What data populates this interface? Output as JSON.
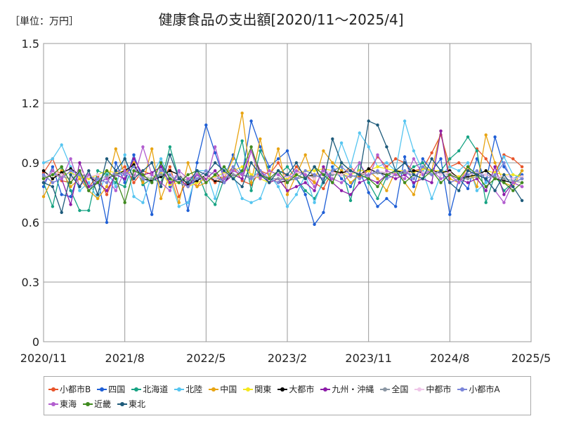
{
  "header": {
    "unit_label": "［単位：万円］",
    "title": "健康食品の支出額[2020/11～2025/4]"
  },
  "chart_data": {
    "type": "line",
    "ylim": [
      0,
      1.5
    ],
    "y_ticks": [
      "0",
      "0.3",
      "0.6",
      "0.9",
      "1.2",
      "1.5"
    ],
    "x_ticks": [
      "2020/11",
      "2021/8",
      "2022/5",
      "2023/2",
      "2023/11",
      "2024/8",
      "2025/5"
    ],
    "x_start": "2020/11",
    "months": [
      "2020/11",
      "2020/12",
      "2021/1",
      "2021/2",
      "2021/3",
      "2021/4",
      "2021/5",
      "2021/6",
      "2021/7",
      "2021/8",
      "2021/9",
      "2021/10",
      "2021/11",
      "2021/12",
      "2022/1",
      "2022/2",
      "2022/3",
      "2022/4",
      "2022/5",
      "2022/6",
      "2022/7",
      "2022/8",
      "2022/9",
      "2022/10",
      "2022/11",
      "2022/12",
      "2023/1",
      "2023/2",
      "2023/3",
      "2023/4",
      "2023/5",
      "2023/6",
      "2023/7",
      "2023/8",
      "2023/9",
      "2023/10",
      "2023/11",
      "2023/12",
      "2024/1",
      "2024/2",
      "2024/3",
      "2024/4",
      "2024/5",
      "2024/6",
      "2024/7",
      "2024/8",
      "2024/9",
      "2024/10",
      "2024/11",
      "2024/12",
      "2025/1",
      "2025/2",
      "2025/3",
      "2025/4"
    ],
    "grid": true,
    "legend_position": "bottom",
    "series": [
      {
        "name": "小都市B",
        "color": "#e8542a",
        "values": [
          0.85,
          0.92,
          0.81,
          0.8,
          0.86,
          0.78,
          0.83,
          0.74,
          0.85,
          0.88,
          0.8,
          0.86,
          0.84,
          0.8,
          0.88,
          0.73,
          0.82,
          0.78,
          0.84,
          0.8,
          0.83,
          0.88,
          0.81,
          0.79,
          0.86,
          0.84,
          0.9,
          0.82,
          0.88,
          0.84,
          0.8,
          0.77,
          0.86,
          0.84,
          0.88,
          0.83,
          0.86,
          0.93,
          0.88,
          0.92,
          0.9,
          0.86,
          0.87,
          0.95,
          1.04,
          0.88,
          0.9,
          0.86,
          0.97,
          0.92,
          0.85,
          0.94,
          0.92,
          0.88
        ]
      },
      {
        "name": "四国",
        "color": "#1f5fd6",
        "values": [
          0.78,
          0.88,
          0.74,
          0.73,
          0.86,
          0.76,
          0.82,
          0.6,
          0.9,
          0.8,
          0.94,
          0.81,
          0.64,
          0.9,
          0.78,
          0.86,
          0.66,
          0.9,
          1.09,
          0.95,
          0.82,
          0.94,
          0.84,
          1.11,
          0.98,
          0.88,
          0.92,
          0.96,
          0.82,
          0.74,
          0.59,
          0.65,
          0.88,
          0.82,
          0.78,
          0.86,
          0.75,
          0.68,
          0.72,
          0.68,
          0.93,
          0.78,
          0.92,
          0.86,
          0.92,
          0.64,
          0.82,
          0.77,
          0.92,
          0.8,
          1.03,
          0.88,
          0.82,
          0.84
        ]
      },
      {
        "name": "北海道",
        "color": "#17a383",
        "values": [
          0.8,
          0.68,
          0.88,
          0.76,
          0.66,
          0.66,
          0.86,
          0.84,
          0.8,
          0.78,
          0.9,
          0.79,
          0.82,
          0.8,
          0.98,
          0.82,
          0.78,
          0.86,
          0.74,
          0.69,
          0.82,
          0.86,
          1.01,
          0.76,
          0.96,
          0.86,
          0.84,
          0.88,
          0.82,
          0.76,
          0.72,
          0.8,
          0.86,
          0.88,
          0.71,
          0.9,
          0.8,
          0.72,
          0.83,
          0.86,
          0.84,
          0.88,
          0.9,
          0.84,
          0.86,
          0.92,
          0.96,
          1.03,
          0.96,
          0.7,
          0.84,
          0.76,
          0.8,
          0.86
        ]
      },
      {
        "name": "北陸",
        "color": "#56c5f0",
        "values": [
          0.9,
          0.92,
          0.99,
          0.88,
          0.76,
          0.8,
          0.72,
          0.86,
          0.78,
          0.94,
          0.73,
          0.7,
          0.84,
          0.92,
          0.82,
          0.68,
          0.7,
          0.86,
          0.86,
          0.72,
          0.88,
          0.84,
          0.72,
          0.7,
          0.72,
          0.84,
          0.78,
          0.68,
          0.74,
          0.84,
          0.7,
          0.82,
          0.86,
          1.0,
          0.88,
          1.05,
          0.98,
          0.88,
          0.9,
          0.86,
          1.11,
          0.96,
          0.86,
          0.72,
          0.84,
          0.88,
          0.86,
          0.9,
          0.76,
          0.8,
          0.84,
          0.93,
          0.84,
          0.82
        ]
      },
      {
        "name": "中国",
        "color": "#e8a412",
        "values": [
          0.73,
          0.82,
          0.86,
          0.78,
          0.82,
          0.76,
          0.72,
          0.78,
          0.97,
          0.84,
          0.9,
          0.8,
          0.97,
          0.72,
          0.84,
          0.7,
          0.9,
          0.78,
          0.8,
          0.84,
          0.82,
          0.92,
          1.15,
          0.8,
          1.02,
          0.82,
          0.97,
          0.74,
          0.84,
          0.94,
          0.8,
          0.96,
          0.9,
          0.86,
          0.8,
          0.84,
          0.86,
          0.82,
          0.76,
          0.86,
          0.8,
          0.74,
          0.88,
          0.86,
          1.06,
          0.82,
          0.8,
          0.88,
          0.78,
          1.04,
          0.9,
          0.8,
          0.78,
          0.86
        ]
      },
      {
        "name": "関東",
        "color": "#f5e81d",
        "values": [
          0.82,
          0.86,
          0.84,
          0.85,
          0.83,
          0.82,
          0.84,
          0.86,
          0.85,
          0.86,
          0.84,
          0.83,
          0.82,
          0.85,
          0.79,
          0.8,
          0.78,
          0.8,
          0.82,
          0.83,
          0.85,
          0.86,
          0.88,
          0.84,
          0.82,
          0.8,
          0.82,
          0.82,
          0.84,
          0.86,
          0.86,
          0.87,
          0.86,
          0.85,
          0.84,
          0.86,
          0.86,
          0.88,
          0.87,
          0.86,
          0.86,
          0.85,
          0.87,
          0.86,
          0.86,
          0.85,
          0.83,
          0.82,
          0.84,
          0.86,
          0.85,
          0.84,
          0.84,
          0.83
        ]
      },
      {
        "name": "大都市",
        "color": "#000000",
        "values": [
          0.86,
          0.82,
          0.85,
          0.87,
          0.84,
          0.83,
          0.8,
          0.82,
          0.84,
          0.86,
          0.89,
          0.82,
          0.81,
          0.83,
          0.86,
          0.84,
          0.79,
          0.81,
          0.84,
          0.81,
          0.8,
          0.86,
          0.84,
          0.82,
          0.84,
          0.82,
          0.8,
          0.81,
          0.82,
          0.83,
          0.84,
          0.82,
          0.86,
          0.85,
          0.86,
          0.84,
          0.87,
          0.85,
          0.84,
          0.86,
          0.85,
          0.86,
          0.85,
          0.86,
          0.85,
          0.86,
          0.82,
          0.83,
          0.84,
          0.86,
          0.82,
          0.81,
          0.8,
          0.82
        ]
      },
      {
        "name": "九州・沖縄",
        "color": "#8c1ca8",
        "values": [
          0.84,
          0.8,
          0.82,
          0.69,
          0.9,
          0.78,
          0.8,
          0.76,
          0.84,
          0.82,
          0.92,
          0.84,
          0.85,
          0.88,
          0.8,
          0.82,
          0.78,
          0.84,
          0.82,
          0.86,
          0.8,
          0.84,
          0.82,
          0.96,
          0.86,
          0.8,
          0.82,
          0.76,
          0.78,
          0.8,
          0.76,
          0.88,
          0.8,
          0.76,
          0.74,
          0.8,
          0.82,
          0.8,
          0.84,
          0.82,
          0.84,
          0.8,
          0.82,
          0.8,
          1.06,
          0.8,
          0.82,
          0.8,
          0.82,
          0.76,
          0.88,
          0.74,
          0.8,
          0.78
        ]
      },
      {
        "name": "全国",
        "color": "#8a96a3",
        "values": [
          0.83,
          0.84,
          0.83,
          0.82,
          0.84,
          0.83,
          0.82,
          0.83,
          0.84,
          0.85,
          0.84,
          0.83,
          0.82,
          0.84,
          0.82,
          0.83,
          0.81,
          0.82,
          0.83,
          0.82,
          0.82,
          0.84,
          0.84,
          0.83,
          0.83,
          0.82,
          0.82,
          0.81,
          0.82,
          0.83,
          0.83,
          0.84,
          0.84,
          0.84,
          0.83,
          0.84,
          0.84,
          0.85,
          0.85,
          0.84,
          0.85,
          0.84,
          0.85,
          0.84,
          0.85,
          0.84,
          0.82,
          0.82,
          0.83,
          0.84,
          0.83,
          0.82,
          0.81,
          0.8
        ]
      },
      {
        "name": "中都市",
        "color": "#efc6e8",
        "values": [
          0.82,
          0.86,
          0.84,
          0.82,
          0.86,
          0.83,
          0.84,
          0.82,
          0.86,
          0.84,
          0.85,
          0.82,
          0.84,
          0.86,
          0.83,
          0.84,
          0.82,
          0.85,
          0.83,
          0.82,
          0.84,
          0.86,
          0.84,
          0.82,
          0.84,
          0.82,
          0.84,
          0.83,
          0.85,
          0.84,
          0.82,
          0.86,
          0.85,
          0.84,
          0.86,
          0.85,
          0.84,
          0.86,
          0.85,
          0.84,
          0.86,
          0.84,
          0.85,
          0.86,
          0.84,
          0.85,
          0.82,
          0.84,
          0.85,
          0.84,
          0.82,
          0.84,
          0.82,
          0.83
        ]
      },
      {
        "name": "小都市A",
        "color": "#7b85d9",
        "values": [
          0.84,
          0.8,
          0.82,
          0.86,
          0.84,
          0.76,
          0.82,
          0.8,
          0.86,
          0.84,
          0.88,
          0.82,
          0.8,
          0.86,
          0.84,
          0.8,
          0.78,
          0.82,
          0.86,
          0.84,
          0.8,
          0.88,
          0.84,
          0.82,
          0.86,
          0.82,
          0.8,
          0.84,
          0.82,
          0.86,
          0.84,
          0.82,
          0.86,
          0.88,
          0.84,
          0.82,
          0.84,
          0.86,
          0.82,
          0.84,
          0.86,
          0.82,
          0.88,
          0.84,
          0.86,
          0.8,
          0.82,
          0.84,
          0.86,
          0.82,
          0.84,
          0.9,
          0.8,
          0.82
        ]
      },
      {
        "name": "東海",
        "color": "#b25ecf",
        "values": [
          0.8,
          0.86,
          0.82,
          0.92,
          0.78,
          0.84,
          0.8,
          0.82,
          0.76,
          0.86,
          0.82,
          0.98,
          0.84,
          0.8,
          0.76,
          0.86,
          0.82,
          0.84,
          0.8,
          0.98,
          0.82,
          0.86,
          0.84,
          0.96,
          0.82,
          0.86,
          0.84,
          0.8,
          0.86,
          0.84,
          0.78,
          0.86,
          0.82,
          0.8,
          0.84,
          0.9,
          0.82,
          0.94,
          0.86,
          0.84,
          0.82,
          0.92,
          0.84,
          0.86,
          0.82,
          0.84,
          0.8,
          0.86,
          0.84,
          0.82,
          0.76,
          0.7,
          0.8,
          0.78
        ]
      },
      {
        "name": "近畿",
        "color": "#3f8a1e",
        "values": [
          0.82,
          0.84,
          0.88,
          0.8,
          0.86,
          0.76,
          0.8,
          0.86,
          0.82,
          0.7,
          0.86,
          0.84,
          0.8,
          0.9,
          0.82,
          0.8,
          0.84,
          0.86,
          0.8,
          0.84,
          0.88,
          0.82,
          0.86,
          0.98,
          0.84,
          0.82,
          0.86,
          0.8,
          0.84,
          0.82,
          0.88,
          0.84,
          0.8,
          0.9,
          0.86,
          0.84,
          0.82,
          0.78,
          0.84,
          0.86,
          0.8,
          0.84,
          0.82,
          0.86,
          0.8,
          0.84,
          0.82,
          0.88,
          0.84,
          0.78,
          0.82,
          0.8,
          0.76,
          0.8
        ]
      },
      {
        "name": "東北",
        "color": "#1d5a7a",
        "values": [
          0.8,
          0.78,
          0.65,
          0.84,
          0.78,
          0.86,
          0.74,
          0.92,
          0.86,
          0.92,
          0.82,
          0.86,
          0.9,
          0.78,
          0.94,
          0.82,
          0.8,
          0.86,
          0.84,
          0.9,
          0.86,
          0.82,
          0.78,
          0.9,
          0.84,
          0.8,
          0.86,
          0.84,
          0.9,
          0.82,
          0.88,
          0.8,
          1.02,
          0.9,
          0.86,
          0.84,
          1.11,
          1.09,
          0.98,
          0.86,
          0.9,
          0.84,
          0.82,
          0.92,
          0.86,
          0.8,
          0.76,
          0.86,
          0.84,
          0.82,
          0.76,
          0.84,
          0.78,
          0.71
        ]
      }
    ]
  }
}
